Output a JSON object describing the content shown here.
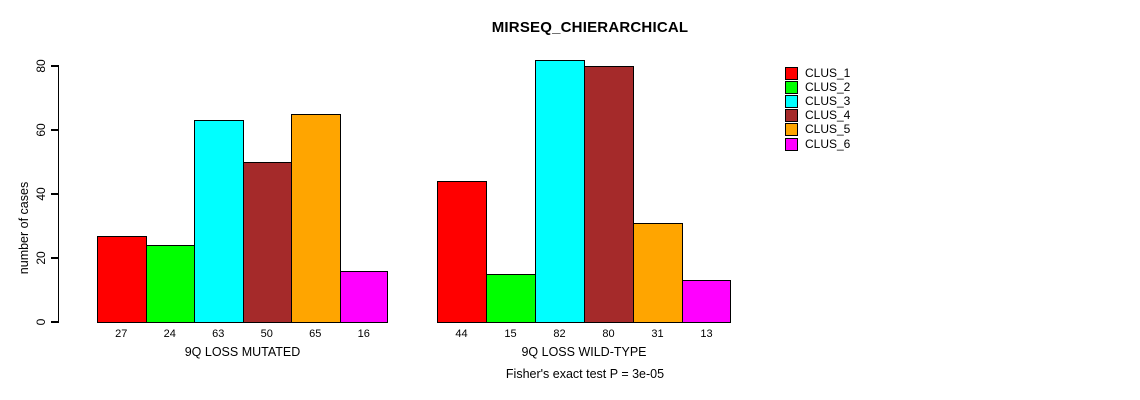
{
  "chart_data": {
    "type": "bar",
    "title": "MIRSEQ_CHIERARCHICAL",
    "ylabel": "number of cases",
    "ylim": [
      0,
      80
    ],
    "yticks": [
      0,
      20,
      40,
      60,
      80
    ],
    "grid": false,
    "legend_position": "right",
    "categories": [
      "9Q LOSS MUTATED",
      "9Q LOSS WILD-TYPE"
    ],
    "series": [
      {
        "name": "CLUS_1",
        "color": "#FF0000",
        "values": [
          27,
          44
        ]
      },
      {
        "name": "CLUS_2",
        "color": "#00FF00",
        "values": [
          24,
          15
        ]
      },
      {
        "name": "CLUS_3",
        "color": "#00FFFF",
        "values": [
          63,
          82
        ]
      },
      {
        "name": "CLUS_4",
        "color": "#A52A2A",
        "values": [
          50,
          80
        ]
      },
      {
        "name": "CLUS_5",
        "color": "#FFA500",
        "values": [
          65,
          31
        ]
      },
      {
        "name": "CLUS_6",
        "color": "#FF00FF",
        "values": [
          16,
          13
        ]
      }
    ],
    "bar_value_labels_shown": true,
    "annotation": "Fisher's exact test P = 3e-05"
  }
}
